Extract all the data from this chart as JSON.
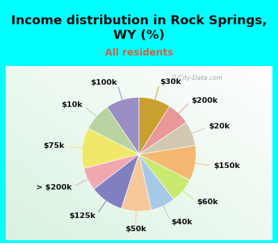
{
  "title": "Income distribution in Rock Springs,\nWY (%)",
  "subtitle": "All residents",
  "watermark": "ⓘ City-Data.com",
  "background_cyan": "#00ffff",
  "title_fontsize": 13,
  "subtitle_fontsize": 10,
  "subtitle_color": "#cc6644",
  "title_color": "#111111",
  "label_fontsize": 8,
  "slices": [
    {
      "label": "$100k",
      "value": 9.5,
      "color": "#9b8ec4"
    },
    {
      "label": "$10k",
      "value": 8.0,
      "color": "#b8d4a0"
    },
    {
      "label": "$75k",
      "value": 11.5,
      "color": "#f0e86a"
    },
    {
      "label": "> $200k",
      "value": 6.5,
      "color": "#f0a8b0"
    },
    {
      "label": "$125k",
      "value": 9.5,
      "color": "#8080c0"
    },
    {
      "label": "$50k",
      "value": 8.5,
      "color": "#f5c89a"
    },
    {
      "label": "$40k",
      "value": 7.0,
      "color": "#a8c8e8"
    },
    {
      "label": "$60k",
      "value": 7.0,
      "color": "#c8e870"
    },
    {
      "label": "$150k",
      "value": 10.0,
      "color": "#f5b870"
    },
    {
      "label": "$20k",
      "value": 7.0,
      "color": "#d0c8b0"
    },
    {
      "label": "$200k",
      "value": 6.5,
      "color": "#e89898"
    },
    {
      "label": "$30k",
      "value": 9.0,
      "color": "#c8a030"
    }
  ]
}
